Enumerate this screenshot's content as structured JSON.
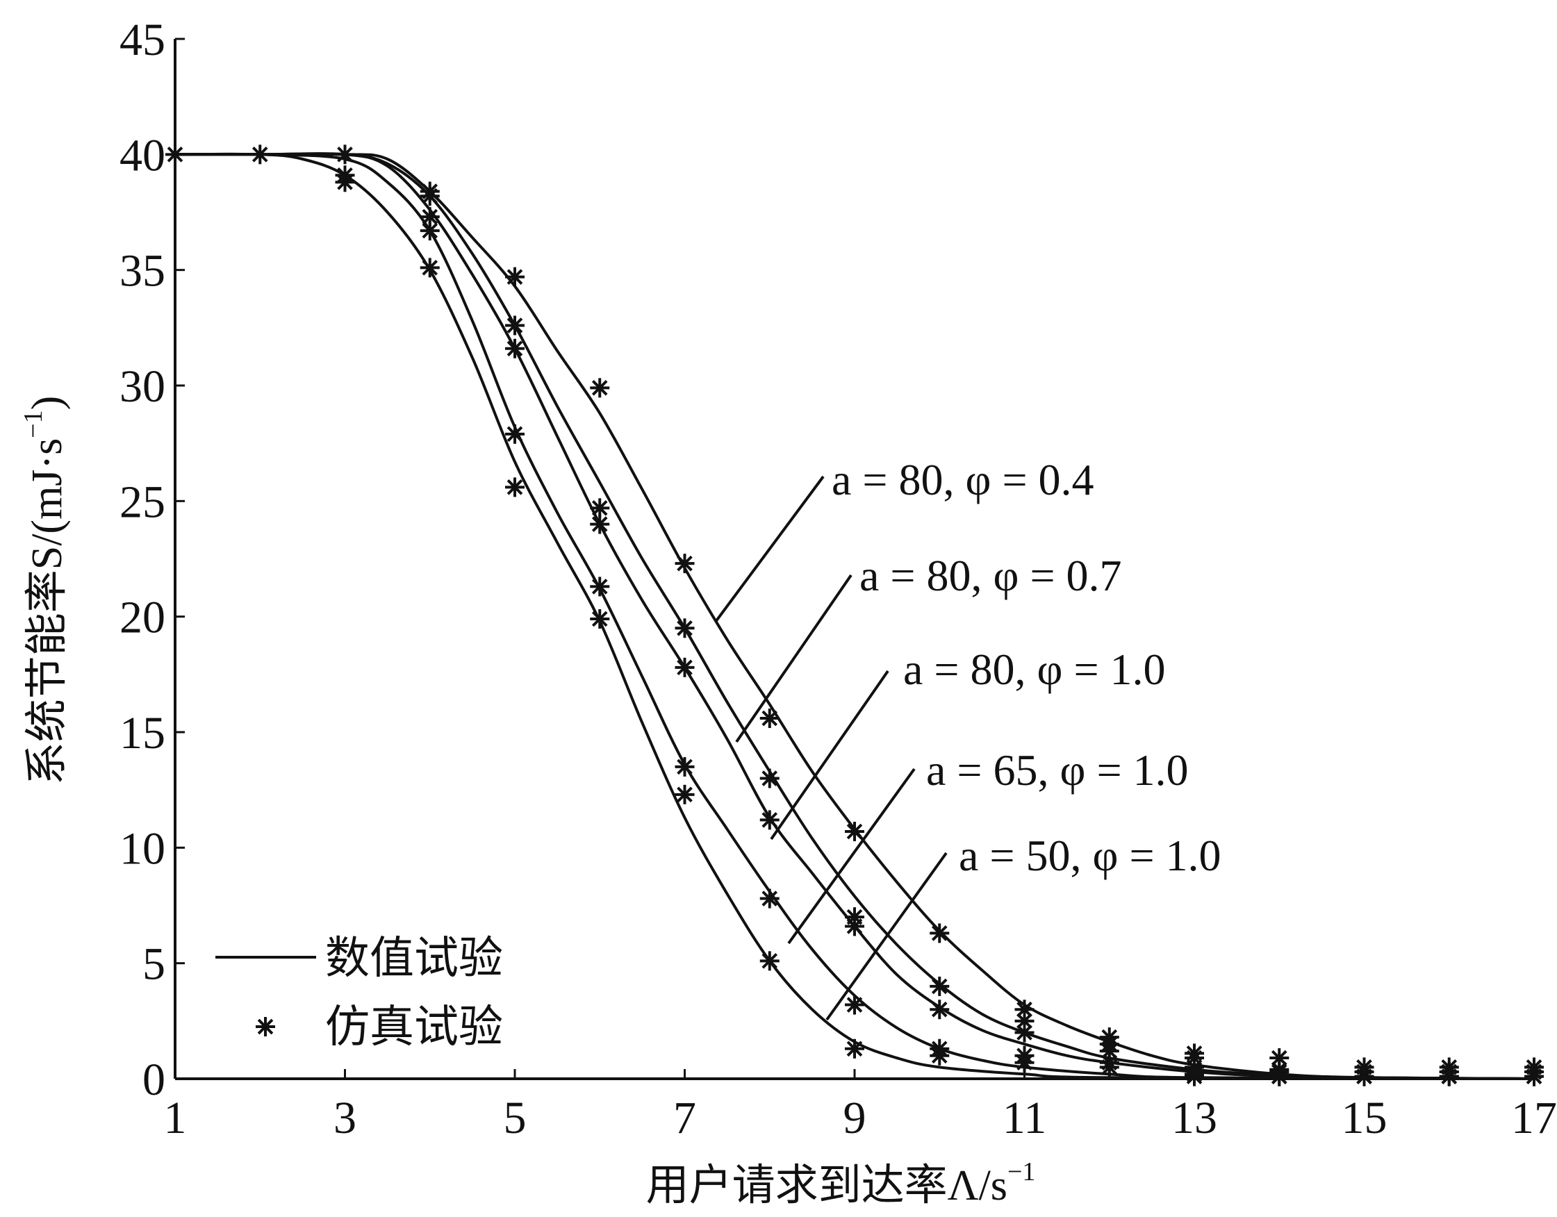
{
  "chart_data": {
    "type": "line",
    "xlabel": "用户请求到达率Λ/s",
    "xlabel_sup": "−1",
    "ylabel": "系统节能率S/(mJ·s",
    "ylabel_sup": "−1",
    "ylabel_close": ")",
    "xlim": [
      1,
      17
    ],
    "ylim": [
      0,
      45
    ],
    "xticks": [
      1,
      3,
      5,
      7,
      9,
      11,
      13,
      15,
      17
    ],
    "yticks": [
      0,
      5,
      10,
      15,
      20,
      25,
      30,
      35,
      40,
      45
    ],
    "grid": false,
    "legend": {
      "position": "bottom-left",
      "entries": [
        {
          "label": "数值试验",
          "marker": "line"
        },
        {
          "label": "仿真试验",
          "marker": "asterisk"
        }
      ]
    },
    "series": [
      {
        "name": "a = 80, φ = 0.4",
        "line": [
          [
            1,
            40
          ],
          [
            2,
            40
          ],
          [
            3,
            40
          ],
          [
            3.5,
            39.8
          ],
          [
            4,
            38.4
          ],
          [
            4.5,
            36.4
          ],
          [
            5,
            34.3
          ],
          [
            5.5,
            31.5
          ],
          [
            6,
            28.8
          ],
          [
            6.5,
            25.5
          ],
          [
            7,
            22.1
          ],
          [
            7.5,
            19
          ],
          [
            8,
            16.2
          ],
          [
            8.5,
            13.3
          ],
          [
            9,
            10.8
          ],
          [
            9.5,
            8.5
          ],
          [
            10,
            6.4
          ],
          [
            10.5,
            4.7
          ],
          [
            11,
            3.2
          ],
          [
            11.5,
            2.3
          ],
          [
            12,
            1.6
          ],
          [
            12.5,
            1
          ],
          [
            13,
            0.6
          ],
          [
            14,
            0.2
          ],
          [
            15,
            0.05
          ],
          [
            17,
            0
          ]
        ],
        "points": [
          [
            1,
            40
          ],
          [
            2,
            40
          ],
          [
            3,
            40
          ],
          [
            4,
            38.4
          ],
          [
            5,
            34.7
          ],
          [
            6,
            29.9
          ],
          [
            7,
            22.3
          ],
          [
            8,
            15.6
          ],
          [
            9,
            10.7
          ],
          [
            10,
            6.3
          ],
          [
            11,
            3
          ],
          [
            12,
            1.8
          ],
          [
            13,
            1.1
          ],
          [
            14,
            0.9
          ],
          [
            15,
            0.5
          ],
          [
            16,
            0.5
          ],
          [
            17,
            0.5
          ]
        ]
      },
      {
        "name": "a = 80, φ = 0.7",
        "line": [
          [
            1,
            40
          ],
          [
            2,
            40
          ],
          [
            3,
            40
          ],
          [
            3.5,
            39.6
          ],
          [
            4,
            38.2
          ],
          [
            4.5,
            35.7
          ],
          [
            5,
            32.6
          ],
          [
            5.5,
            29.1
          ],
          [
            6,
            25.8
          ],
          [
            6.5,
            22.5
          ],
          [
            7,
            19.5
          ],
          [
            7.5,
            16.3
          ],
          [
            8,
            13.3
          ],
          [
            8.5,
            10.4
          ],
          [
            9,
            7.9
          ],
          [
            9.5,
            5.8
          ],
          [
            10,
            4.1
          ],
          [
            10.5,
            2.8
          ],
          [
            11,
            2
          ],
          [
            11.5,
            1.4
          ],
          [
            12,
            0.9
          ],
          [
            13,
            0.4
          ],
          [
            14,
            0.15
          ],
          [
            15,
            0.05
          ],
          [
            17,
            0
          ]
        ],
        "points": [
          [
            4,
            38.2
          ],
          [
            5,
            32.6
          ],
          [
            6,
            24.7
          ],
          [
            7,
            19.5
          ],
          [
            8,
            13
          ],
          [
            9,
            7
          ],
          [
            10,
            4
          ],
          [
            11,
            2.5
          ],
          [
            12,
            1.5
          ],
          [
            13,
            0.9
          ],
          [
            14,
            0.4
          ],
          [
            15,
            0.3
          ],
          [
            16,
            0.3
          ],
          [
            17,
            0.3
          ]
        ]
      },
      {
        "name": "a = 80, φ = 1.0",
        "line": [
          [
            1,
            40
          ],
          [
            2,
            40
          ],
          [
            3,
            40
          ],
          [
            3.5,
            39.5
          ],
          [
            4,
            37.6
          ],
          [
            4.5,
            34.8
          ],
          [
            5,
            31.6
          ],
          [
            5.5,
            27.8
          ],
          [
            6,
            24
          ],
          [
            6.5,
            20.7
          ],
          [
            7,
            17.8
          ],
          [
            7.5,
            14.7
          ],
          [
            8,
            11.3
          ],
          [
            8.5,
            8.9
          ],
          [
            9,
            6.6
          ],
          [
            9.5,
            4.5
          ],
          [
            10,
            3.1
          ],
          [
            10.5,
            2.1
          ],
          [
            11,
            1.5
          ],
          [
            11.5,
            1
          ],
          [
            12,
            0.7
          ],
          [
            13,
            0.3
          ],
          [
            14,
            0.1
          ],
          [
            15,
            0.05
          ],
          [
            17,
            0
          ]
        ],
        "points": [
          [
            4,
            37.3
          ],
          [
            5,
            31.6
          ],
          [
            6,
            24
          ],
          [
            7,
            17.8
          ],
          [
            8,
            11.2
          ],
          [
            9,
            6.6
          ],
          [
            10,
            3
          ],
          [
            11,
            2
          ],
          [
            12,
            1.2
          ],
          [
            13,
            0.5
          ],
          [
            14,
            0.3
          ],
          [
            15,
            0.3
          ],
          [
            16,
            0.3
          ],
          [
            17,
            0.3
          ]
        ]
      },
      {
        "name": "a = 65, φ = 1.0",
        "line": [
          [
            1,
            40
          ],
          [
            2,
            40
          ],
          [
            3,
            39.8
          ],
          [
            3.5,
            38.8
          ],
          [
            4,
            36.7
          ],
          [
            4.5,
            32.8
          ],
          [
            5,
            28.2
          ],
          [
            5.5,
            24.5
          ],
          [
            6,
            21.2
          ],
          [
            6.5,
            17.4
          ],
          [
            7,
            13.6
          ],
          [
            7.5,
            10.8
          ],
          [
            8,
            8.1
          ],
          [
            8.5,
            5.6
          ],
          [
            9,
            3.6
          ],
          [
            9.5,
            2.2
          ],
          [
            10,
            1.3
          ],
          [
            10.5,
            0.8
          ],
          [
            11,
            0.5
          ],
          [
            12,
            0.2
          ],
          [
            13,
            0.05
          ],
          [
            17,
            0
          ]
        ],
        "points": [
          [
            3,
            39.1
          ],
          [
            4,
            36.7
          ],
          [
            5,
            27.9
          ],
          [
            6,
            21.3
          ],
          [
            7,
            13.5
          ],
          [
            8,
            7.8
          ],
          [
            9,
            3.2
          ],
          [
            10,
            1.3
          ],
          [
            11,
            1
          ],
          [
            12,
            0.7
          ],
          [
            13,
            0.2
          ],
          [
            14,
            0.1
          ],
          [
            15,
            0.1
          ],
          [
            16,
            0.1
          ],
          [
            17,
            0.1
          ]
        ]
      },
      {
        "name": "a = 50, φ = 1.0",
        "line": [
          [
            1,
            40
          ],
          [
            2,
            40
          ],
          [
            2.5,
            39.8
          ],
          [
            3,
            39.1
          ],
          [
            3.5,
            37.5
          ],
          [
            4,
            35
          ],
          [
            4.5,
            31.2
          ],
          [
            5,
            26.7
          ],
          [
            5.5,
            23.2
          ],
          [
            6,
            19.8
          ],
          [
            6.5,
            15.4
          ],
          [
            7,
            11.3
          ],
          [
            7.5,
            8
          ],
          [
            8,
            5.1
          ],
          [
            8.5,
            3
          ],
          [
            9,
            1.6
          ],
          [
            9.5,
            0.9
          ],
          [
            10,
            0.5
          ],
          [
            11,
            0.2
          ],
          [
            12,
            0.05
          ],
          [
            17,
            0
          ]
        ],
        "points": [
          [
            3,
            38.8
          ],
          [
            4,
            35.1
          ],
          [
            5,
            25.6
          ],
          [
            6,
            19.9
          ],
          [
            7,
            12.3
          ],
          [
            8,
            5.1
          ],
          [
            9,
            1.3
          ],
          [
            10,
            1
          ],
          [
            11,
            0.7
          ],
          [
            12,
            0.5
          ],
          [
            13,
            0.1
          ],
          [
            14,
            0.1
          ],
          [
            15,
            0.1
          ],
          [
            16,
            0.1
          ],
          [
            17,
            0.1
          ]
        ]
      }
    ],
    "annotations": [
      {
        "text": "a = 80, φ = 0.4",
        "series": 0
      },
      {
        "text": "a = 80, φ = 0.7",
        "series": 1
      },
      {
        "text": "a = 80, φ = 1.0",
        "series": 2
      },
      {
        "text": "a = 65, φ = 1.0",
        "series": 3
      },
      {
        "text": "a = 50, φ = 1.0",
        "series": 4
      }
    ]
  }
}
